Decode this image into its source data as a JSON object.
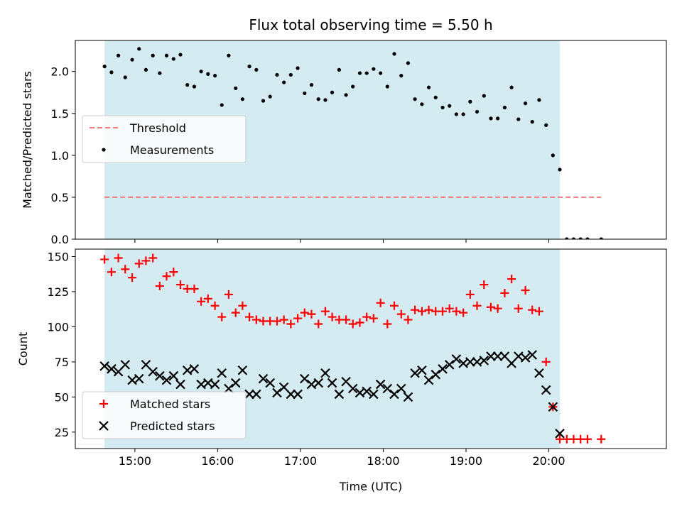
{
  "chart_data": {
    "title": "Flux total observing time = 5.50 h",
    "xlabel": "Time (UTC)",
    "x_units": "hours UTC",
    "xlim": [
      14.28,
      21.42
    ],
    "x_ticks": [
      15,
      16,
      17,
      18,
      19,
      20
    ],
    "x_tick_labels": [
      "15:00",
      "16:00",
      "17:00",
      "18:00",
      "19:00",
      "20:00"
    ],
    "shaded_interval": [
      14.633,
      20.133
    ],
    "shade_color": "#d4ebf1",
    "panels": [
      {
        "type": "scatter",
        "ylabel": "Matched/Predicted stars",
        "ylim": [
          0,
          2.37
        ],
        "y_ticks": [
          0.0,
          0.5,
          1.0,
          1.5,
          2.0
        ],
        "y_tick_labels": [
          "0.0",
          "0.5",
          "1.0",
          "1.5",
          "2.0"
        ],
        "legend_position": "center-left",
        "threshold": {
          "name": "Threshold",
          "value": 0.5,
          "x_range": [
            14.633,
            20.633
          ],
          "color": "#f07c7c"
        },
        "series": [
          {
            "name": "Measurements",
            "marker": "dot",
            "color": "#000000",
            "x": [
              14.633,
              14.717,
              14.8,
              14.883,
              14.967,
              15.05,
              15.133,
              15.217,
              15.3,
              15.383,
              15.467,
              15.55,
              15.633,
              15.717,
              15.8,
              15.883,
              15.967,
              16.05,
              16.133,
              16.217,
              16.3,
              16.383,
              16.467,
              16.55,
              16.633,
              16.717,
              16.8,
              16.883,
              16.967,
              17.05,
              17.133,
              17.217,
              17.3,
              17.383,
              17.467,
              17.55,
              17.633,
              17.717,
              17.8,
              17.883,
              17.967,
              18.05,
              18.133,
              18.217,
              18.3,
              18.383,
              18.467,
              18.55,
              18.633,
              18.717,
              18.8,
              18.883,
              18.967,
              19.05,
              19.133,
              19.217,
              19.3,
              19.383,
              19.467,
              19.55,
              19.633,
              19.717,
              19.8,
              19.883,
              19.967,
              20.05,
              20.133,
              20.217,
              20.3,
              20.383,
              20.467,
              20.633
            ],
            "y": [
              2.06,
              1.99,
              2.19,
              1.93,
              2.14,
              2.27,
              2.02,
              2.19,
              1.98,
              2.19,
              2.15,
              2.2,
              1.84,
              1.82,
              2.0,
              1.97,
              1.95,
              1.6,
              2.19,
              1.8,
              1.67,
              2.06,
              2.02,
              1.65,
              1.7,
              1.96,
              1.87,
              1.96,
              2.04,
              1.74,
              1.84,
              1.67,
              1.66,
              1.75,
              2.02,
              1.72,
              1.82,
              1.98,
              1.98,
              2.03,
              1.98,
              1.82,
              2.21,
              1.95,
              2.1,
              1.67,
              1.61,
              1.81,
              1.69,
              1.57,
              1.59,
              1.49,
              1.49,
              1.64,
              1.52,
              1.71,
              1.44,
              1.44,
              1.57,
              1.81,
              1.43,
              1.62,
              1.4,
              1.66,
              1.36,
              1.0,
              0.83,
              0.0,
              0.0,
              0.0,
              0.0,
              0.0
            ]
          }
        ]
      },
      {
        "type": "scatter",
        "ylabel": "Count",
        "ylim": [
          13.3,
          155.3
        ],
        "y_ticks": [
          25,
          50,
          75,
          100,
          125,
          150
        ],
        "y_tick_labels": [
          "25",
          "50",
          "75",
          "100",
          "125",
          "150"
        ],
        "legend_position": "lower-left",
        "series": [
          {
            "name": "Matched stars",
            "marker": "plus",
            "color": "#ff0000",
            "x": [
              14.633,
              14.717,
              14.8,
              14.883,
              14.967,
              15.05,
              15.133,
              15.217,
              15.3,
              15.383,
              15.467,
              15.55,
              15.633,
              15.717,
              15.8,
              15.883,
              15.967,
              16.05,
              16.133,
              16.217,
              16.3,
              16.383,
              16.467,
              16.55,
              16.633,
              16.717,
              16.8,
              16.883,
              16.967,
              17.05,
              17.133,
              17.217,
              17.3,
              17.383,
              17.467,
              17.55,
              17.633,
              17.717,
              17.8,
              17.883,
              17.967,
              18.05,
              18.133,
              18.217,
              18.3,
              18.383,
              18.467,
              18.55,
              18.633,
              18.717,
              18.8,
              18.883,
              18.967,
              19.05,
              19.133,
              19.217,
              19.3,
              19.383,
              19.467,
              19.55,
              19.633,
              19.717,
              19.8,
              19.883,
              19.967,
              20.05,
              20.133,
              20.217,
              20.3,
              20.383,
              20.467,
              20.633
            ],
            "y": [
              148,
              139,
              149,
              141,
              135,
              145,
              147,
              149,
              129,
              136,
              139,
              130,
              127,
              127,
              118,
              120,
              115,
              107,
              123,
              110,
              115,
              107,
              105,
              104,
              104,
              104,
              105,
              102,
              106,
              110,
              109,
              102,
              111,
              107,
              105,
              105,
              102,
              103,
              107,
              106,
              117,
              102,
              115,
              109,
              105,
              112,
              111,
              112,
              111,
              111,
              113,
              111,
              110,
              123,
              115,
              130,
              114,
              113,
              124,
              134,
              113,
              126,
              112,
              111,
              75,
              43,
              20,
              20,
              20,
              20,
              20,
              20
            ]
          },
          {
            "name": "Predicted stars",
            "marker": "x",
            "color": "#000000",
            "x": [
              14.633,
              14.717,
              14.8,
              14.883,
              14.967,
              15.05,
              15.133,
              15.217,
              15.3,
              15.383,
              15.467,
              15.55,
              15.633,
              15.717,
              15.8,
              15.883,
              15.967,
              16.05,
              16.133,
              16.217,
              16.3,
              16.383,
              16.467,
              16.55,
              16.633,
              16.717,
              16.8,
              16.883,
              16.967,
              17.05,
              17.133,
              17.217,
              17.3,
              17.383,
              17.467,
              17.55,
              17.633,
              17.717,
              17.8,
              17.883,
              17.967,
              18.05,
              18.133,
              18.217,
              18.3,
              18.383,
              18.467,
              18.55,
              18.633,
              18.717,
              18.8,
              18.883,
              18.967,
              19.05,
              19.133,
              19.217,
              19.3,
              19.383,
              19.467,
              19.55,
              19.633,
              19.717,
              19.8,
              19.883,
              19.967,
              20.05,
              20.133
            ],
            "y": [
              72,
              70,
              68,
              73,
              62,
              63,
              73,
              68,
              65,
              62,
              65,
              59,
              69,
              70,
              59,
              60,
              59,
              67,
              56,
              60,
              69,
              52,
              52,
              63,
              60,
              53,
              57,
              52,
              52,
              63,
              59,
              60,
              67,
              60,
              52,
              61,
              56,
              53,
              54,
              52,
              59,
              56,
              52,
              56,
              50,
              67,
              69,
              62,
              66,
              70,
              73,
              77,
              74,
              75,
              75,
              76,
              79,
              79,
              79,
              74,
              79,
              78,
              80,
              67,
              55,
              43,
              24
            ]
          }
        ]
      }
    ]
  }
}
